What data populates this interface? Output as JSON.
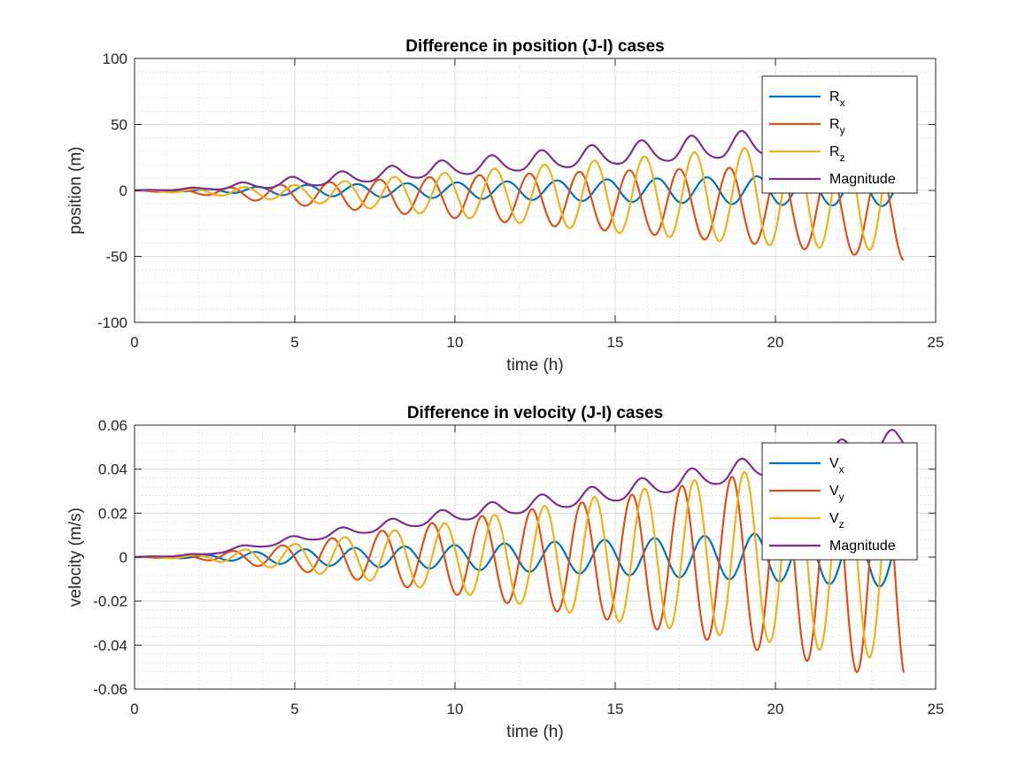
{
  "chart_data": [
    {
      "type": "line",
      "title": "Difference in position (J-I) cases",
      "xlabel": "time (h)",
      "ylabel": "position (m)",
      "xlim": [
        0,
        25
      ],
      "ylim": [
        -100,
        100
      ],
      "xticks": [
        "0",
        "5",
        "10",
        "15",
        "20",
        "25"
      ],
      "yticks": [
        "-100",
        "-50",
        "0",
        "50",
        "100"
      ],
      "grid": true,
      "minor_grid": true,
      "legend_position": "top-right",
      "period_h": 1.56,
      "duration_h": 24,
      "series": [
        {
          "name": "R",
          "sub": "x",
          "color": "#0072BD",
          "kind": "osc",
          "amp": [
            [
              0,
              0
            ],
            [
              2,
              0.8
            ],
            [
              5,
              4
            ],
            [
              10,
              6
            ],
            [
              15,
              8.5
            ],
            [
              20,
              11
            ],
            [
              24,
              12
            ]
          ],
          "phase": -0.2
        },
        {
          "name": "R",
          "sub": "y",
          "color": "#D95319",
          "kind": "osc_offset",
          "amp": [
            [
              0,
              0
            ],
            [
              2,
              2
            ],
            [
              5,
              8
            ],
            [
              10,
              16
            ],
            [
              15,
              23
            ],
            [
              20,
              30
            ],
            [
              24,
              35
            ]
          ],
          "offset": [
            [
              0,
              0
            ],
            [
              2,
              -1
            ],
            [
              5,
              -3
            ],
            [
              10,
              -5
            ],
            [
              15,
              -8
            ],
            [
              20,
              -12
            ],
            [
              24,
              -18
            ]
          ],
          "phase": 0.35
        },
        {
          "name": "R",
          "sub": "z",
          "color": "#EDB120",
          "kind": "osc_offset",
          "amp": [
            [
              0,
              0
            ],
            [
              2,
              2
            ],
            [
              5,
              6
            ],
            [
              10,
              17
            ],
            [
              15,
              28
            ],
            [
              20,
              38
            ],
            [
              24,
              43
            ]
          ],
          "offset": [
            [
              0,
              0
            ],
            [
              5,
              -2
            ],
            [
              10,
              -3
            ],
            [
              15,
              -4
            ],
            [
              20,
              -4
            ],
            [
              24,
              -3
            ]
          ],
          "phase": 0.05
        },
        {
          "name": "Magnitude",
          "sub": "",
          "color": "#7E2F8E",
          "kind": "mag",
          "amp": [
            [
              0,
              0
            ],
            [
              2,
              1
            ],
            [
              5,
              4
            ],
            [
              10,
              6
            ],
            [
              15,
              8
            ],
            [
              20,
              10
            ],
            [
              24,
              10
            ]
          ],
          "offset": [
            [
              0,
              0
            ],
            [
              2,
              1.2
            ],
            [
              5,
              6
            ],
            [
              10,
              17
            ],
            [
              15,
              27
            ],
            [
              20,
              36
            ],
            [
              24,
              42
            ]
          ],
          "phase": 0.1
        }
      ]
    },
    {
      "type": "line",
      "title": "Difference in velocity (J-I) cases",
      "xlabel": "time (h)",
      "ylabel": "velocity (m/s)",
      "xlim": [
        0,
        25
      ],
      "ylim": [
        -0.06,
        0.06
      ],
      "xticks": [
        "0",
        "5",
        "10",
        "15",
        "20",
        "25"
      ],
      "yticks": [
        "-0.06",
        "-0.04",
        "-0.02",
        "0",
        "0.02",
        "0.04",
        "0.06"
      ],
      "grid": true,
      "minor_grid": true,
      "legend_position": "top-right",
      "period_h": 1.56,
      "duration_h": 24,
      "series": [
        {
          "name": "V",
          "sub": "x",
          "color": "#0072BD",
          "kind": "osc",
          "amp": [
            [
              0,
              0
            ],
            [
              2,
              0.0007
            ],
            [
              5,
              0.0035
            ],
            [
              10,
              0.0055
            ],
            [
              15,
              0.008
            ],
            [
              20,
              0.011
            ],
            [
              24,
              0.014
            ]
          ],
          "phase": -0.15
        },
        {
          "name": "V",
          "sub": "y",
          "color": "#D95319",
          "kind": "osc_offset",
          "amp": [
            [
              0,
              0
            ],
            [
              2,
              0.001
            ],
            [
              5,
              0.006
            ],
            [
              10,
              0.017
            ],
            [
              15,
              0.028
            ],
            [
              20,
              0.042
            ],
            [
              24,
              0.054
            ]
          ],
          "offset": [
            [
              0,
              0
            ],
            [
              5,
              0
            ],
            [
              10,
              0
            ],
            [
              15,
              -0.001
            ],
            [
              20,
              -0.002
            ],
            [
              24,
              -0.003
            ]
          ],
          "phase": 0.3
        },
        {
          "name": "V",
          "sub": "z",
          "color": "#EDB120",
          "kind": "osc_offset",
          "amp": [
            [
              0,
              0
            ],
            [
              2,
              0.001
            ],
            [
              5,
              0.006
            ],
            [
              10,
              0.016
            ],
            [
              15,
              0.029
            ],
            [
              20,
              0.04
            ],
            [
              24,
              0.05
            ]
          ],
          "offset": [
            [
              0,
              0
            ],
            [
              5,
              0
            ],
            [
              10,
              0
            ],
            [
              15,
              0
            ],
            [
              20,
              0.001
            ],
            [
              24,
              0.002
            ]
          ],
          "phase": 0.05
        },
        {
          "name": "Magnitude",
          "sub": "",
          "color": "#7E2F8E",
          "kind": "mag",
          "amp": [
            [
              0,
              0
            ],
            [
              2,
              0.0005
            ],
            [
              5,
              0.0015
            ],
            [
              10,
              0.003
            ],
            [
              15,
              0.004
            ],
            [
              20,
              0.005
            ],
            [
              24,
              0.006
            ]
          ],
          "offset": [
            [
              0,
              0
            ],
            [
              2,
              0.001
            ],
            [
              5,
              0.008
            ],
            [
              10,
              0.019
            ],
            [
              15,
              0.029
            ],
            [
              20,
              0.042
            ],
            [
              24,
              0.052
            ]
          ],
          "phase": 0.1
        }
      ]
    }
  ]
}
